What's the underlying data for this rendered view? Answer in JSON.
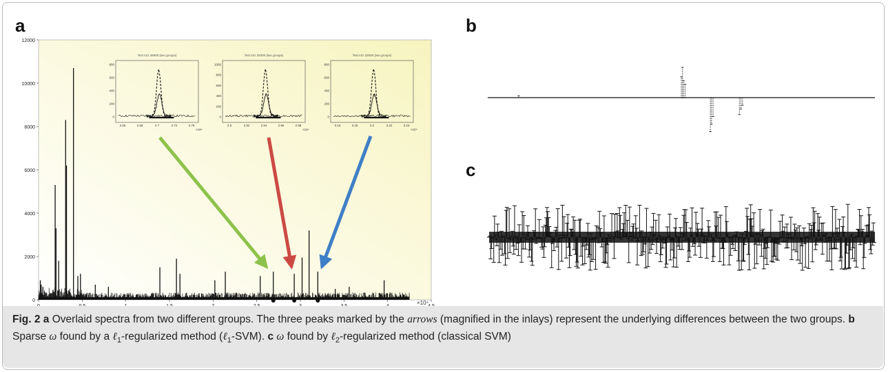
{
  "panels": {
    "a": "a",
    "b": "b",
    "c": "c"
  },
  "chart_data": [
    {
      "panel": "a",
      "type": "line",
      "description_kind": "overlaid mass spectra",
      "xlim": [
        0,
        45000
      ],
      "ylim": [
        0,
        12000
      ],
      "x_ticks": [
        "0",
        "0.5",
        "1",
        "1.5",
        "2",
        "2.5",
        "3",
        "3.5",
        "4",
        "4.5"
      ],
      "x_tick_values": [
        0,
        5000,
        10000,
        15000,
        20000,
        25000,
        30000,
        35000,
        40000,
        45000
      ],
      "x_multiplier": "×10⁴",
      "y_ticks": [
        "0",
        "2000",
        "4000",
        "6000",
        "8000",
        "10000",
        "12000"
      ],
      "y_tick_values": [
        0,
        2000,
        4000,
        6000,
        8000,
        10000,
        12000
      ],
      "background_gradient": [
        "#ffffff",
        "#f7f4c0"
      ],
      "peaks": [
        {
          "x": 200,
          "y": 900
        },
        {
          "x": 300,
          "y": 700
        },
        {
          "x": 500,
          "y": 600
        },
        {
          "x": 1900,
          "y": 5300
        },
        {
          "x": 2000,
          "y": 3300
        },
        {
          "x": 2300,
          "y": 1800
        },
        {
          "x": 3100,
          "y": 8300
        },
        {
          "x": 3200,
          "y": 6200
        },
        {
          "x": 4000,
          "y": 10700
        },
        {
          "x": 4500,
          "y": 1100
        },
        {
          "x": 4800,
          "y": 1200
        },
        {
          "x": 6500,
          "y": 700
        },
        {
          "x": 8000,
          "y": 600
        },
        {
          "x": 13900,
          "y": 1500
        },
        {
          "x": 15800,
          "y": 1900
        },
        {
          "x": 16200,
          "y": 1200
        },
        {
          "x": 20200,
          "y": 900
        },
        {
          "x": 21400,
          "y": 1300
        },
        {
          "x": 25400,
          "y": 1100
        },
        {
          "x": 26900,
          "y": 1300
        },
        {
          "x": 29300,
          "y": 1200
        },
        {
          "x": 30200,
          "y": 1950
        },
        {
          "x": 31000,
          "y": 3200
        },
        {
          "x": 32000,
          "y": 1300
        },
        {
          "x": 34000,
          "y": 500
        },
        {
          "x": 35600,
          "y": 600
        },
        {
          "x": 39600,
          "y": 900
        }
      ],
      "markers_x": [
        26900,
        29300,
        32000
      ],
      "arrows": [
        {
          "color": "#8dc24b",
          "from_inlay": 0,
          "to_x": 26900
        },
        {
          "color": "#cc4a44",
          "from_inlay": 1,
          "to_x": 29300
        },
        {
          "color": "#3f7fc6",
          "from_inlay": 2,
          "to_x": 32000
        }
      ],
      "inlays": [
        {
          "title": "Test m/z 26900 (two groups)",
          "x_ticks": [
            "2.65",
            "2.68",
            "2.7",
            "2.72",
            "2.75"
          ],
          "y_ticks": [
            "0",
            "200",
            "400",
            "600",
            "800"
          ],
          "y_ticks_full": [
            "0",
            "200",
            "400",
            "600",
            "800",
            "1000"
          ]
        },
        {
          "title": "Test m/z 29300 (two groups)",
          "x_ticks": [
            "2.9",
            "2.92",
            "2.94",
            "2.96",
            "2.98"
          ],
          "y_ticks": [
            "0",
            "200",
            "400",
            "600",
            "800",
            "1000"
          ],
          "y_ticks_full": [
            "0",
            "200",
            "400",
            "600",
            "800",
            "1000"
          ]
        },
        {
          "title": "Test m/z 32000 (two groups)",
          "x_ticks": [
            "3.16",
            "3.18",
            "3.2",
            "3.22",
            "3.24"
          ],
          "y_ticks": [
            "0",
            "200",
            "400",
            "600",
            "800"
          ],
          "y_ticks_full": [
            "0",
            "200",
            "400",
            "600",
            "800",
            "1000"
          ]
        }
      ],
      "inlay_x_multiplier": "×10⁴"
    },
    {
      "panel": "b",
      "type": "bar",
      "description_kind": "sparse weight vector",
      "n_features": 1000,
      "nonzero": [
        {
          "i": 80,
          "v": 0.05
        },
        {
          "i": 500,
          "v": 0.55
        },
        {
          "i": 503,
          "v": 0.8
        },
        {
          "i": 506,
          "v": 0.45
        },
        {
          "i": 510,
          "v": 0.35
        },
        {
          "i": 575,
          "v": -0.9
        },
        {
          "i": 578,
          "v": -0.7
        },
        {
          "i": 582,
          "v": -0.5
        },
        {
          "i": 650,
          "v": -0.45
        },
        {
          "i": 654,
          "v": -0.3
        },
        {
          "i": 658,
          "v": -0.2
        }
      ]
    },
    {
      "panel": "c",
      "type": "bar",
      "description_kind": "dense weight vector",
      "n_features": 1000,
      "seed": 7,
      "amplitude": 1.0
    }
  ],
  "caption": {
    "fig": "Fig. 2",
    "a_label": "a",
    "a_text_1": " Overlaid spectra from two different groups. The three peaks marked by the ",
    "a_arrows": "arrows",
    "a_text_2": " (magnified in the inlays) represent the underlying differences between the two groups. ",
    "b_label": "b",
    "b_text_1": " Sparse ",
    "b_omega": "ω",
    "b_text_2": " found by a ",
    "b_ell": "ℓ",
    "b_sub": "1",
    "b_text_3": "-regularized method (",
    "b_ell2": "ℓ",
    "b_sub2": "1",
    "b_text_4": "-SVM). ",
    "c_label": "c",
    "c_text_1": " ",
    "c_omega": "ω",
    "c_text_2": " found by ",
    "c_ell": "ℓ",
    "c_sub": "2",
    "c_text_3": "-regularized method (classical SVM)"
  }
}
